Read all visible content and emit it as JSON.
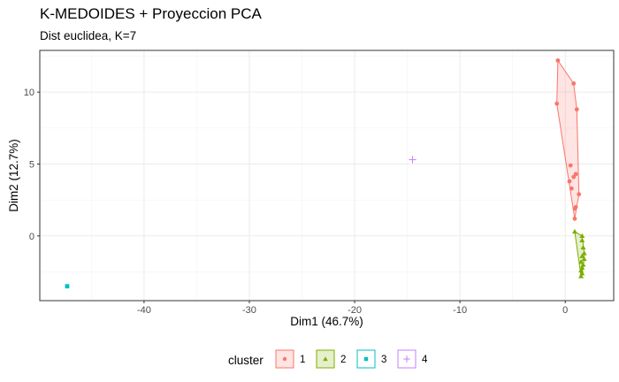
{
  "chart_data": {
    "type": "scatter",
    "title": "K-MEDOIDES + Proyeccion PCA",
    "subtitle": "Dist euclidea, K=7",
    "xlabel": "Dim1 (46.7%)",
    "ylabel": "Dim2 (12.7%)",
    "xlim": [
      -49.9,
      4.6
    ],
    "ylim": [
      -4.5,
      12.9
    ],
    "x_ticks": [
      -40,
      -30,
      -20,
      -10,
      0
    ],
    "y_ticks": [
      0,
      5,
      10
    ],
    "grid": true,
    "legend": {
      "title": "cluster",
      "position": "bottom"
    },
    "series": [
      {
        "name": "1",
        "color": "#F8766D",
        "marker": "circle",
        "hull": true,
        "points": [
          [
            -0.7,
            12.2
          ],
          [
            -0.8,
            9.2
          ],
          [
            0.8,
            10.6
          ],
          [
            1.1,
            8.8
          ],
          [
            0.5,
            4.9
          ],
          [
            1.0,
            4.3
          ],
          [
            0.8,
            4.1
          ],
          [
            0.4,
            3.8
          ],
          [
            0.6,
            3.3
          ],
          [
            1.3,
            2.9
          ],
          [
            1.0,
            2.0
          ],
          [
            0.9,
            1.9
          ],
          [
            0.9,
            1.2
          ]
        ]
      },
      {
        "name": "2",
        "color": "#7CAE00",
        "marker": "triangle",
        "hull": true,
        "points": [
          [
            0.9,
            0.3
          ],
          [
            1.6,
            0.0
          ],
          [
            1.6,
            -0.3
          ],
          [
            1.7,
            -0.8
          ],
          [
            1.8,
            -1.2
          ],
          [
            1.6,
            -1.4
          ],
          [
            1.8,
            -1.6
          ],
          [
            1.5,
            -1.8
          ],
          [
            1.7,
            -2.0
          ],
          [
            1.6,
            -2.2
          ],
          [
            1.5,
            -2.4
          ],
          [
            1.6,
            -2.6
          ],
          [
            1.5,
            -2.8
          ]
        ]
      },
      {
        "name": "3",
        "color": "#00BFC4",
        "marker": "square",
        "hull": false,
        "points": [
          [
            -47.3,
            -3.5
          ]
        ]
      },
      {
        "name": "4",
        "color": "#C77CFF",
        "marker": "plus",
        "hull": false,
        "points": [
          [
            -14.5,
            5.3
          ]
        ]
      }
    ]
  }
}
